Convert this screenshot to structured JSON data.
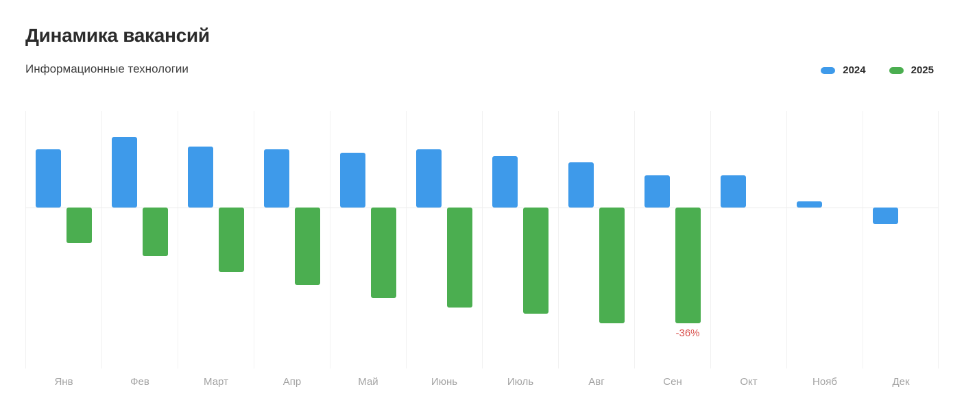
{
  "header": {
    "title": "Динамика вакансий",
    "subtitle": "Информационные технологии"
  },
  "colors": {
    "series_2024": "#3E9AEA",
    "series_2025": "#4BAE50",
    "grid": "#F1F1F1",
    "zero_line": "#ECECEC",
    "axis_label": "#A3A3A3",
    "title_text": "#2B2B2B",
    "subtitle_text": "#3F3F3F",
    "annotation": "#D9534F"
  },
  "chart_data": {
    "type": "bar",
    "title": "Динамика вакансий",
    "subtitle": "Информационные технологии",
    "categories": [
      "Янв",
      "Фев",
      "Март",
      "Апр",
      "Май",
      "Июнь",
      "Июль",
      "Авг",
      "Сен",
      "Окт",
      "Нояб",
      "Дек"
    ],
    "series": [
      {
        "name": "2024",
        "color": "#3E9AEA",
        "values": [
          18,
          22,
          19,
          18,
          17,
          18,
          16,
          14,
          10,
          10,
          2,
          -5
        ]
      },
      {
        "name": "2025",
        "color": "#4BAE50",
        "values": [
          -11,
          -15,
          -20,
          -24,
          -28,
          -31,
          -33,
          -36,
          -36,
          null,
          null,
          null
        ]
      }
    ],
    "annotations": [
      {
        "series": "2025",
        "category": "Сен",
        "text": "-36%",
        "color": "#D9534F"
      }
    ],
    "unit": "%",
    "ylim": [
      -50,
      30
    ],
    "xlabel": "",
    "ylabel": "",
    "grid": "vertical-only",
    "y_axis_labels_visible": false,
    "legend_position": "top-right"
  }
}
